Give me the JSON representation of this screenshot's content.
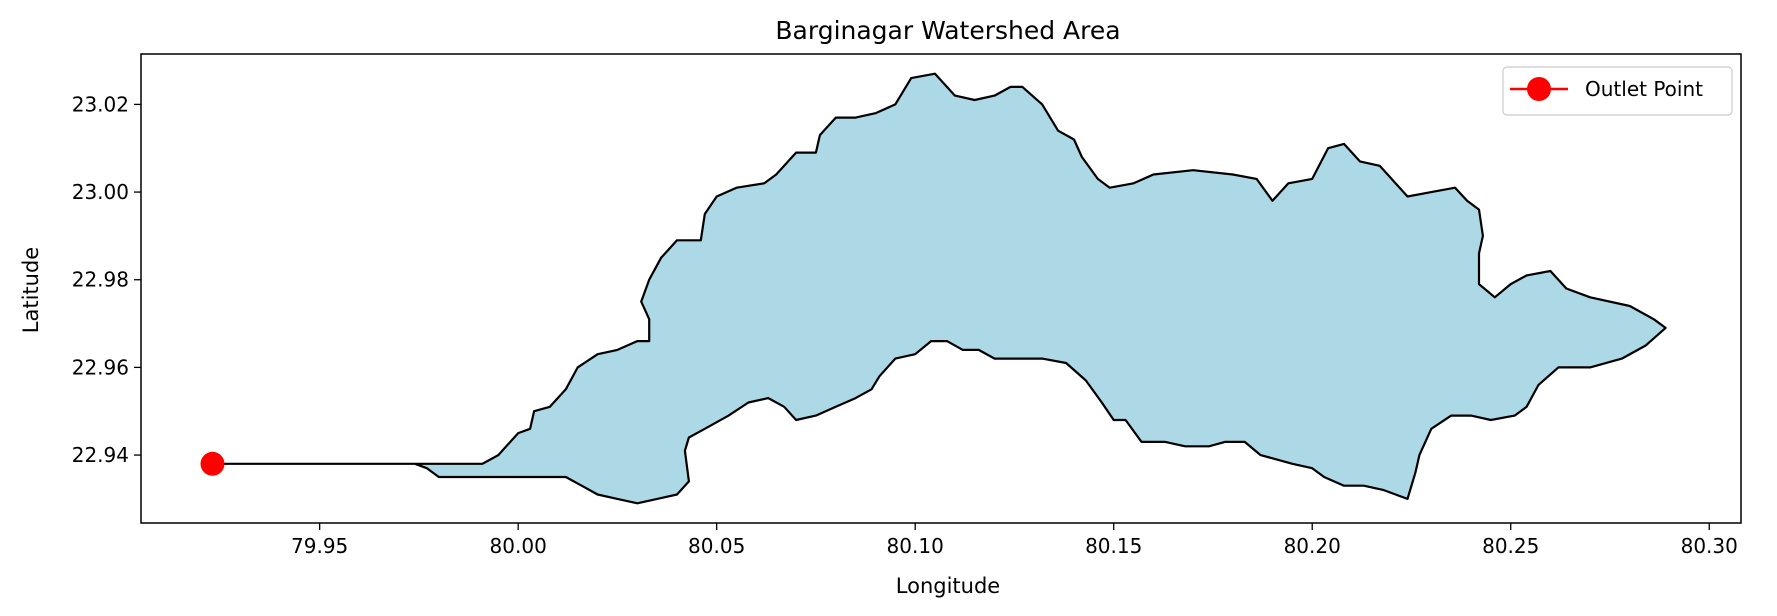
{
  "chart_data": {
    "type": "map",
    "title": "Barginagar Watershed Area",
    "xlabel": "Longitude",
    "ylabel": "Latitude",
    "xlim": [
      79.905,
      80.308
    ],
    "ylim": [
      22.9245,
      23.0315
    ],
    "xticks": [
      79.95,
      80.0,
      80.05,
      80.1,
      80.15,
      80.2,
      80.25,
      80.3
    ],
    "xtick_labels": [
      "79.95",
      "80.00",
      "80.05",
      "80.10",
      "80.15",
      "80.20",
      "80.25",
      "80.30"
    ],
    "yticks": [
      22.94,
      22.96,
      22.98,
      23.0,
      23.02
    ],
    "ytick_labels": [
      "22.94",
      "22.96",
      "22.98",
      "23.00",
      "23.02"
    ],
    "grid": false,
    "legend": {
      "position": "top-right",
      "entries": [
        "Outlet Point"
      ]
    },
    "colors": {
      "fill": "#ADD8E6",
      "outline": "#000000",
      "outlet": "#FF0000"
    },
    "outlet": {
      "name": "Outlet Point",
      "x": 79.923,
      "y": 22.938
    },
    "boundary": [
      [
        79.923,
        22.938
      ],
      [
        79.991,
        22.938
      ],
      [
        79.995,
        22.94
      ],
      [
        80.0,
        22.945
      ],
      [
        80.003,
        22.946
      ],
      [
        80.004,
        22.95
      ],
      [
        80.008,
        22.951
      ],
      [
        80.012,
        22.955
      ],
      [
        80.015,
        22.96
      ],
      [
        80.02,
        22.963
      ],
      [
        80.025,
        22.964
      ],
      [
        80.03,
        22.966
      ],
      [
        80.033,
        22.966
      ],
      [
        80.033,
        22.971
      ],
      [
        80.031,
        22.975
      ],
      [
        80.033,
        22.98
      ],
      [
        80.036,
        22.985
      ],
      [
        80.04,
        22.989
      ],
      [
        80.046,
        22.989
      ],
      [
        80.047,
        22.995
      ],
      [
        80.05,
        22.999
      ],
      [
        80.055,
        23.001
      ],
      [
        80.062,
        23.002
      ],
      [
        80.065,
        23.004
      ],
      [
        80.07,
        23.009
      ],
      [
        80.075,
        23.009
      ],
      [
        80.076,
        23.013
      ],
      [
        80.08,
        23.017
      ],
      [
        80.085,
        23.017
      ],
      [
        80.09,
        23.018
      ],
      [
        80.095,
        23.02
      ],
      [
        80.099,
        23.026
      ],
      [
        80.105,
        23.027
      ],
      [
        80.11,
        23.022
      ],
      [
        80.115,
        23.021
      ],
      [
        80.12,
        23.022
      ],
      [
        80.124,
        23.024
      ],
      [
        80.127,
        23.024
      ],
      [
        80.132,
        23.02
      ],
      [
        80.136,
        23.014
      ],
      [
        80.14,
        23.012
      ],
      [
        80.142,
        23.008
      ],
      [
        80.146,
        23.003
      ],
      [
        80.149,
        23.001
      ],
      [
        80.155,
        23.002
      ],
      [
        80.16,
        23.004
      ],
      [
        80.17,
        23.005
      ],
      [
        80.18,
        23.004
      ],
      [
        80.186,
        23.003
      ],
      [
        80.19,
        22.998
      ],
      [
        80.194,
        23.002
      ],
      [
        80.2,
        23.003
      ],
      [
        80.204,
        23.01
      ],
      [
        80.208,
        23.011
      ],
      [
        80.212,
        23.007
      ],
      [
        80.217,
        23.006
      ],
      [
        80.22,
        23.003
      ],
      [
        80.224,
        22.999
      ],
      [
        80.23,
        23.0
      ],
      [
        80.236,
        23.001
      ],
      [
        80.239,
        22.998
      ],
      [
        80.242,
        22.996
      ],
      [
        80.243,
        22.99
      ],
      [
        80.242,
        22.986
      ],
      [
        80.242,
        22.979
      ],
      [
        80.246,
        22.976
      ],
      [
        80.25,
        22.979
      ],
      [
        80.254,
        22.981
      ],
      [
        80.26,
        22.982
      ],
      [
        80.264,
        22.978
      ],
      [
        80.27,
        22.976
      ],
      [
        80.28,
        22.974
      ],
      [
        80.286,
        22.971
      ],
      [
        80.289,
        22.969
      ],
      [
        80.284,
        22.965
      ],
      [
        80.278,
        22.962
      ],
      [
        80.27,
        22.96
      ],
      [
        80.262,
        22.96
      ],
      [
        80.257,
        22.956
      ],
      [
        80.254,
        22.951
      ],
      [
        80.251,
        22.949
      ],
      [
        80.245,
        22.948
      ],
      [
        80.24,
        22.949
      ],
      [
        80.235,
        22.949
      ],
      [
        80.23,
        22.946
      ],
      [
        80.227,
        22.94
      ],
      [
        80.226,
        22.936
      ],
      [
        80.224,
        22.93
      ],
      [
        80.218,
        22.932
      ],
      [
        80.213,
        22.933
      ],
      [
        80.208,
        22.933
      ],
      [
        80.203,
        22.935
      ],
      [
        80.2,
        22.937
      ],
      [
        80.195,
        22.938
      ],
      [
        80.187,
        22.94
      ],
      [
        80.183,
        22.943
      ],
      [
        80.178,
        22.943
      ],
      [
        80.174,
        22.942
      ],
      [
        80.168,
        22.942
      ],
      [
        80.163,
        22.943
      ],
      [
        80.157,
        22.943
      ],
      [
        80.153,
        22.948
      ],
      [
        80.15,
        22.948
      ],
      [
        80.147,
        22.952
      ],
      [
        80.143,
        22.957
      ],
      [
        80.138,
        22.961
      ],
      [
        80.132,
        22.962
      ],
      [
        80.126,
        22.962
      ],
      [
        80.12,
        22.962
      ],
      [
        80.116,
        22.964
      ],
      [
        80.112,
        22.964
      ],
      [
        80.108,
        22.966
      ],
      [
        80.104,
        22.966
      ],
      [
        80.1,
        22.963
      ],
      [
        80.095,
        22.962
      ],
      [
        80.091,
        22.958
      ],
      [
        80.089,
        22.955
      ],
      [
        80.085,
        22.953
      ],
      [
        80.08,
        22.951
      ],
      [
        80.075,
        22.949
      ],
      [
        80.07,
        22.948
      ],
      [
        80.067,
        22.951
      ],
      [
        80.063,
        22.953
      ],
      [
        80.058,
        22.952
      ],
      [
        80.053,
        22.949
      ],
      [
        80.047,
        22.946
      ],
      [
        80.043,
        22.944
      ],
      [
        80.042,
        22.941
      ],
      [
        80.043,
        22.934
      ],
      [
        80.04,
        22.931
      ],
      [
        80.035,
        22.93
      ],
      [
        80.03,
        22.929
      ],
      [
        80.025,
        22.93
      ],
      [
        80.02,
        22.931
      ],
      [
        80.016,
        22.933
      ],
      [
        80.012,
        22.935
      ],
      [
        79.98,
        22.935
      ],
      [
        79.977,
        22.937
      ],
      [
        79.974,
        22.938
      ],
      [
        79.923,
        22.938
      ]
    ]
  }
}
